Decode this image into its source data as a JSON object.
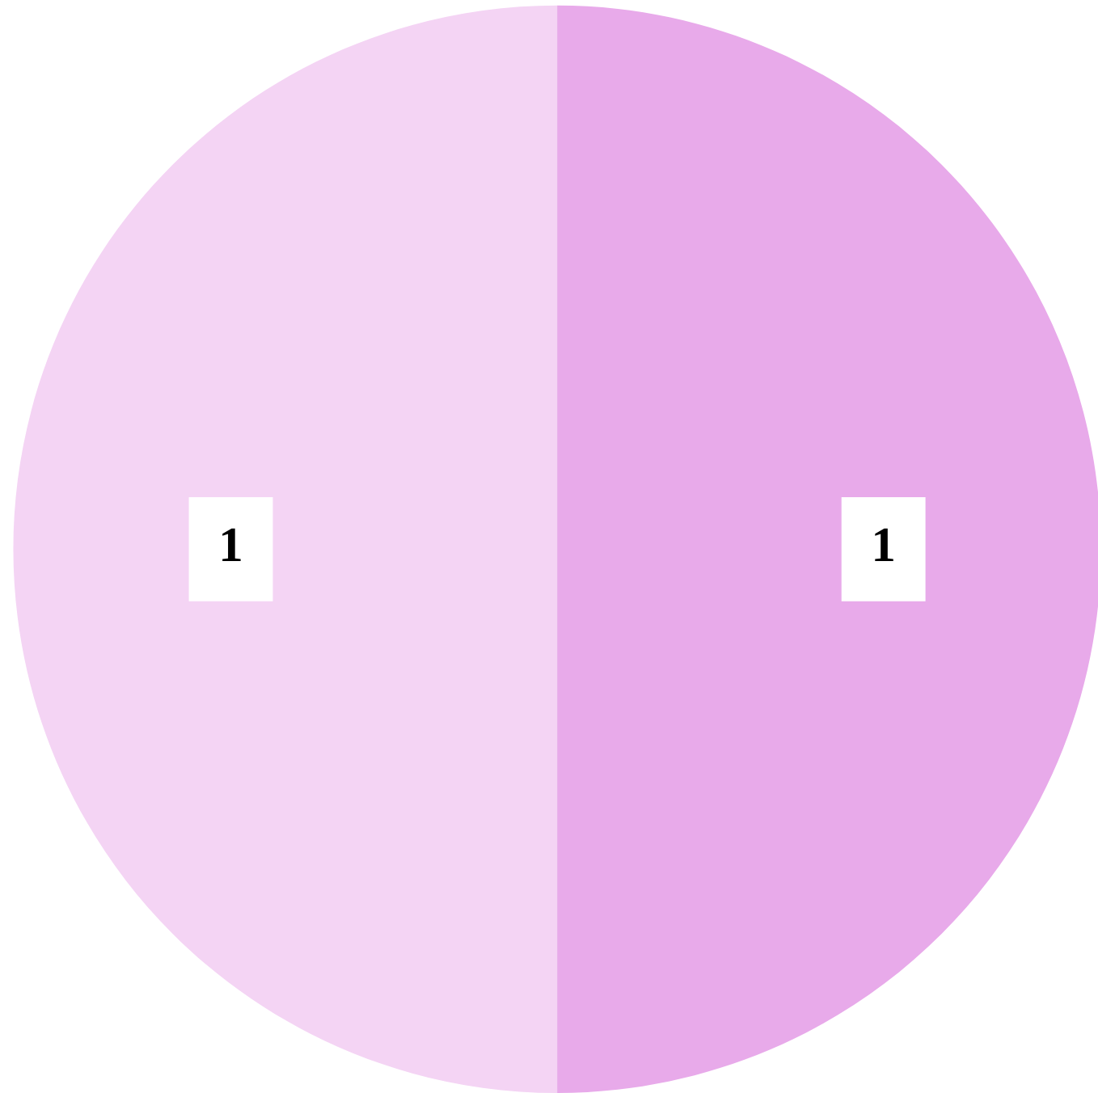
{
  "chart_data": {
    "type": "pie",
    "categories": [
      null,
      null
    ],
    "values": [
      1,
      1
    ],
    "colors": [
      "#e8aaea",
      "#f4d4f4"
    ],
    "data_labels": true
  }
}
